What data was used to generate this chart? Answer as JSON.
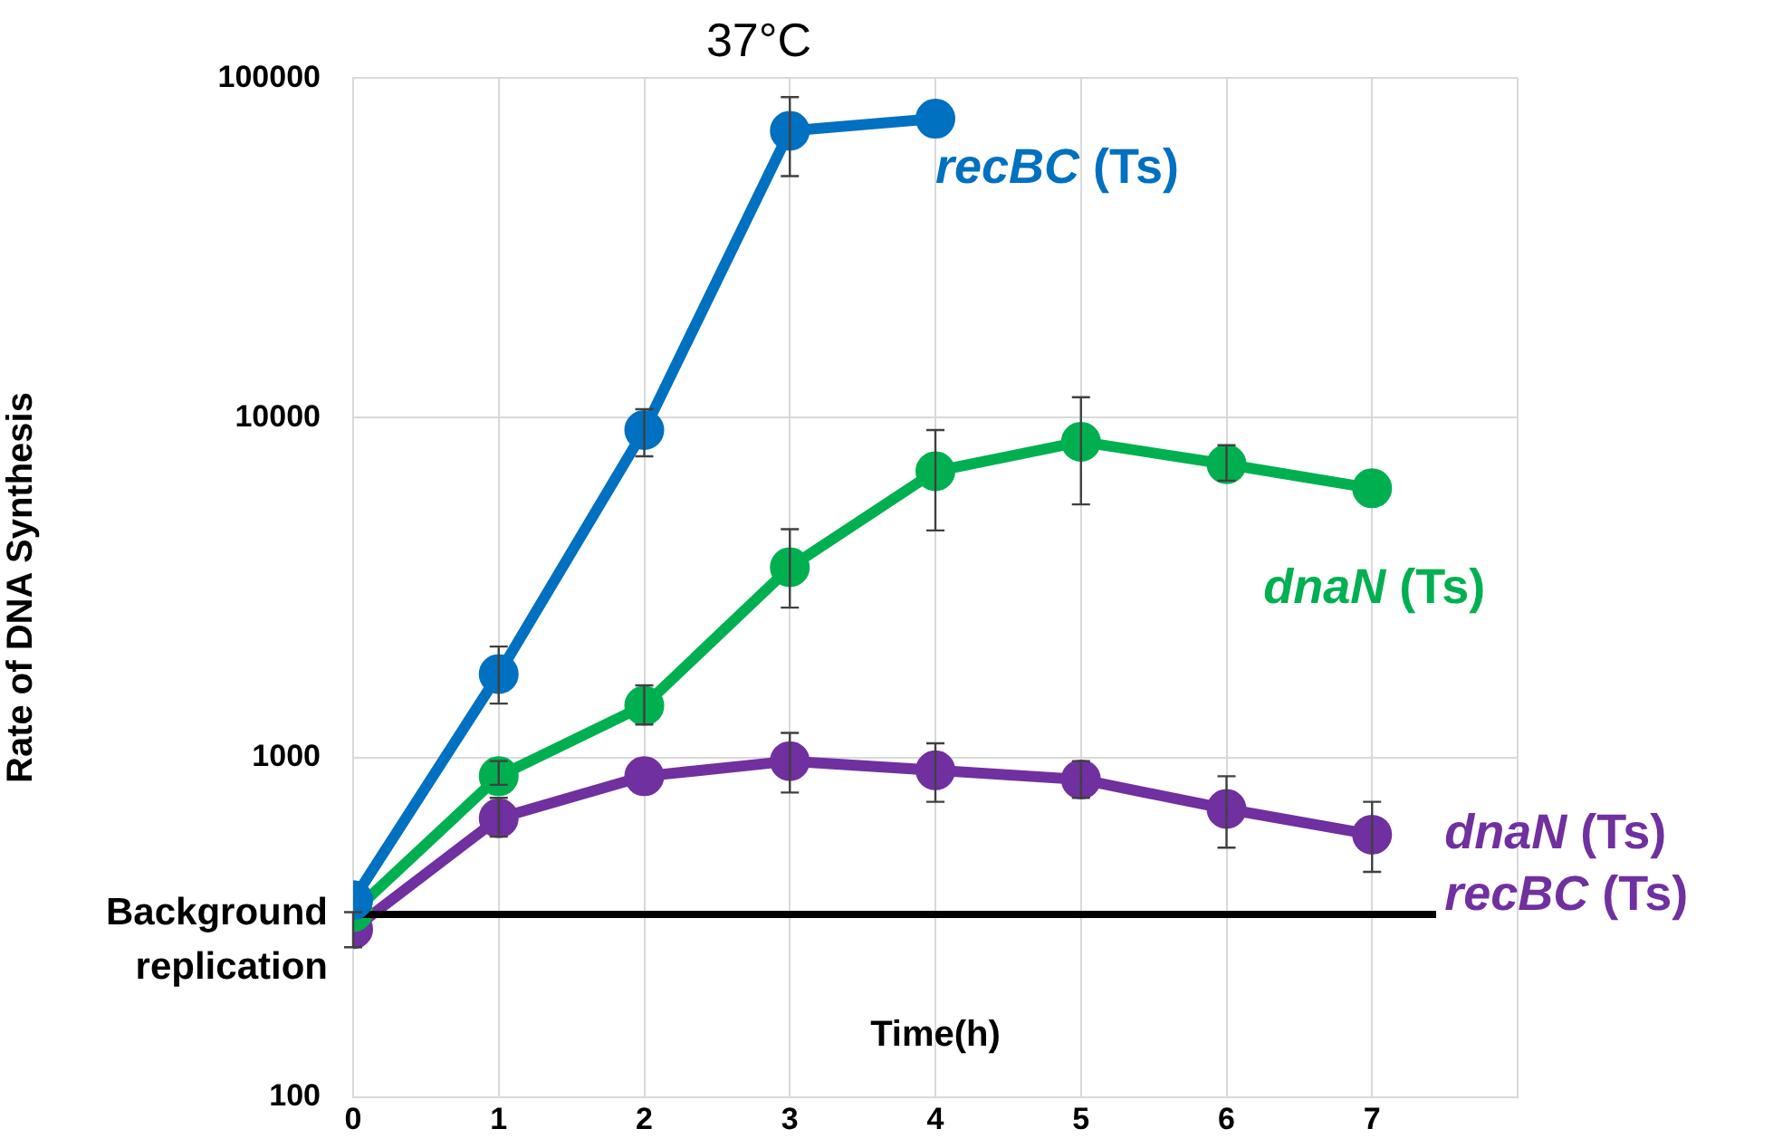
{
  "chart_data": {
    "type": "line",
    "title": "37°C",
    "xlabel": "Time(h)",
    "ylabel": "Rate of DNA Synthesis",
    "log": "y",
    "xlim": [
      0,
      8
    ],
    "xticks": [
      0,
      1,
      2,
      3,
      4,
      5,
      6,
      7,
      {
        "value": 8,
        "label": null
      }
    ],
    "ylim": [
      100,
      100000
    ],
    "yticks": [
      100,
      1000,
      10000,
      100000
    ],
    "grid": true,
    "legend": false,
    "marker": "circle",
    "line_style": "solid",
    "ref_lines": [
      {
        "axis": "y",
        "value": 345,
        "label": "Background replication",
        "color": "#000000"
      }
    ],
    "series": [
      {
        "name": "recBC (Ts)",
        "color": "#0070c0",
        "x": [
          0,
          1,
          2,
          3,
          4
        ],
        "values": [
          380,
          1760,
          9200,
          70000,
          76000
        ],
        "errors": [
          null,
          [
            1440,
            2120
          ],
          [
            7700,
            10600
          ],
          [
            51500,
            88000
          ],
          null
        ]
      },
      {
        "name": "dnaN (Ts)",
        "color": "#00b050",
        "x": [
          0,
          1,
          2,
          3,
          4,
          5,
          6,
          7
        ],
        "values": [
          350,
          880,
          1420,
          3630,
          6960,
          8500,
          7300,
          6200
        ],
        "errors": [
          null,
          [
            830,
            975
          ],
          [
            1250,
            1630
          ],
          [
            2760,
            4700
          ],
          [
            4660,
            9200
          ],
          [
            5560,
            11500
          ],
          [
            6530,
            8300
          ],
          null
        ]
      },
      {
        "name": "dnaN (Ts) recBC (Ts)",
        "color": "#7030a0",
        "x": [
          0,
          1,
          2,
          3,
          4,
          5,
          6,
          7
        ],
        "values": [
          312,
          662,
          880,
          975,
          916,
          861,
          705,
          592
        ],
        "errors": [
          [
            276,
            350
          ],
          [
            584,
            760
          ],
          null,
          [
            788,
            1180
          ],
          [
            740,
            1100
          ],
          [
            760,
            975
          ],
          [
            542,
            880
          ],
          [
            460,
            740
          ]
        ]
      }
    ]
  }
}
